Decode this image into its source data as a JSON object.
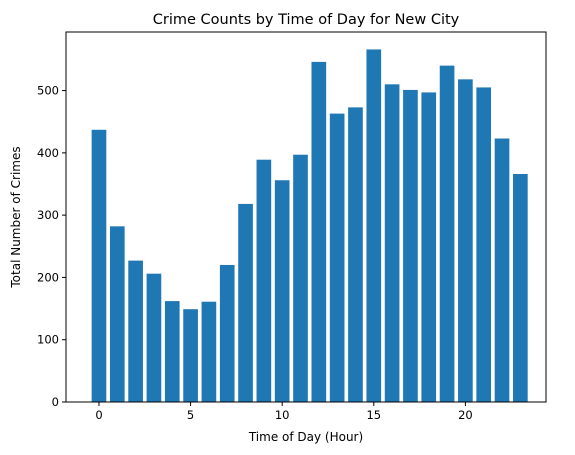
{
  "chart_data": {
    "type": "bar",
    "title": "Crime Counts by Time of Day for New City",
    "xlabel": "Time of Day (Hour)",
    "ylabel": "Total Number of Crimes",
    "categories": [
      0,
      1,
      2,
      3,
      4,
      5,
      6,
      7,
      8,
      9,
      10,
      11,
      12,
      13,
      14,
      15,
      16,
      17,
      18,
      19,
      20,
      21,
      22,
      23
    ],
    "values": [
      437,
      282,
      227,
      206,
      162,
      149,
      161,
      220,
      318,
      389,
      356,
      397,
      546,
      463,
      473,
      566,
      510,
      501,
      497,
      540,
      518,
      505,
      423,
      366
    ],
    "xlim": [
      -1.8,
      24.4
    ],
    "ylim": [
      0,
      594
    ],
    "xticks": [
      0,
      5,
      10,
      15,
      20
    ],
    "yticks": [
      0,
      100,
      200,
      300,
      400,
      500
    ],
    "bar_color": "#1f77b4",
    "grid": false,
    "legend": "none"
  }
}
